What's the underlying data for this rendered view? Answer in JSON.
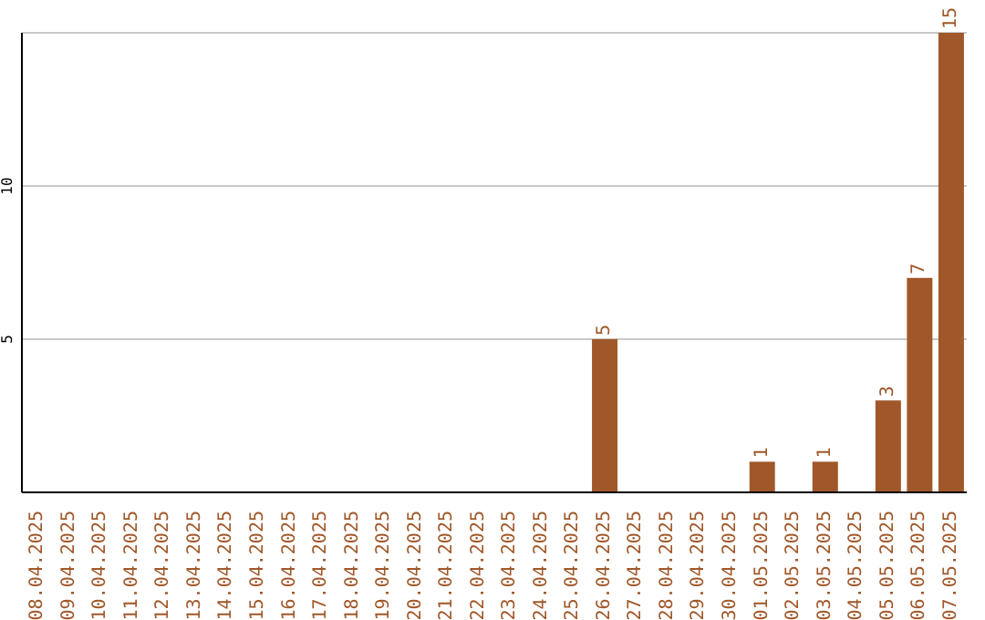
{
  "chart_data": {
    "type": "bar",
    "categories": [
      "08.04.2025",
      "09.04.2025",
      "10.04.2025",
      "11.04.2025",
      "12.04.2025",
      "13.04.2025",
      "14.04.2025",
      "15.04.2025",
      "16.04.2025",
      "17.04.2025",
      "18.04.2025",
      "19.04.2025",
      "20.04.2025",
      "21.04.2025",
      "22.04.2025",
      "23.04.2025",
      "24.04.2025",
      "25.04.2025",
      "26.04.2025",
      "27.04.2025",
      "28.04.2025",
      "29.04.2025",
      "30.04.2025",
      "01.05.2025",
      "02.05.2025",
      "03.05.2025",
      "04.05.2025",
      "05.05.2025",
      "06.05.2025",
      "07.05.2025"
    ],
    "values": [
      0,
      0,
      0,
      0,
      0,
      0,
      0,
      0,
      0,
      0,
      0,
      0,
      0,
      0,
      0,
      0,
      0,
      0,
      5,
      0,
      0,
      0,
      0,
      1,
      0,
      1,
      0,
      3,
      7,
      15
    ],
    "value_labels": [
      null,
      null,
      null,
      null,
      null,
      null,
      null,
      null,
      null,
      null,
      null,
      null,
      null,
      null,
      null,
      null,
      null,
      null,
      "5",
      null,
      null,
      null,
      null,
      "1",
      null,
      "1",
      null,
      "3",
      "7",
      "15"
    ],
    "color": "#a0582a",
    "ylim": [
      0,
      15
    ],
    "yticks": [
      5,
      10
    ],
    "grid": "y"
  }
}
